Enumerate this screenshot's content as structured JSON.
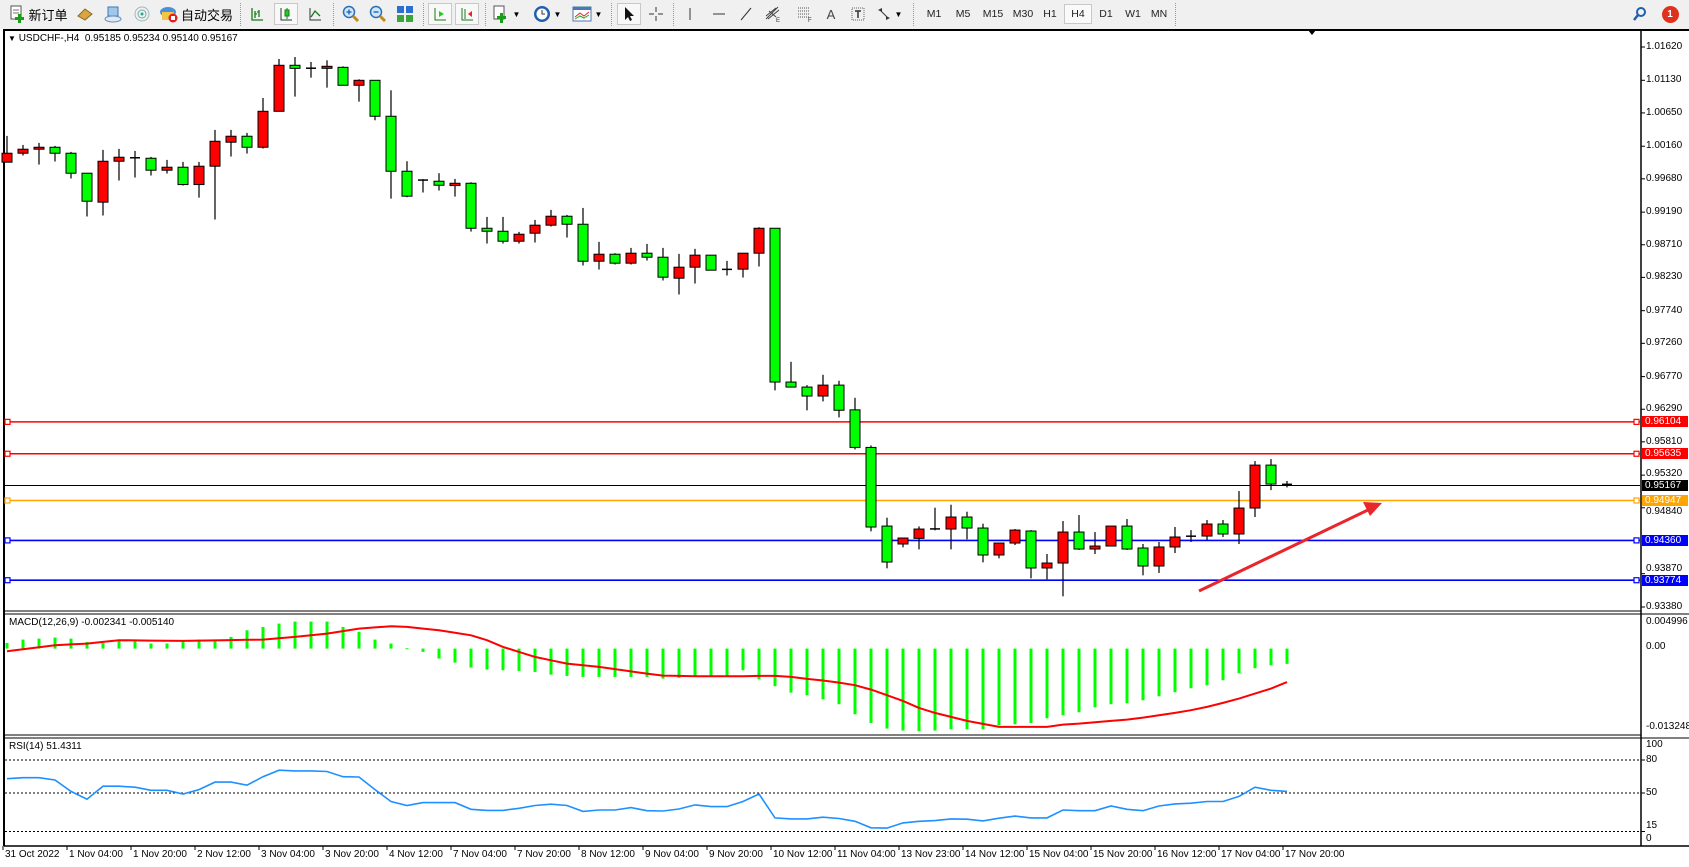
{
  "toolbar": {
    "new_order_label": "新订单",
    "auto_trading_label": "自动交易",
    "icons": [
      "new-order-icon",
      "tickets-icon",
      "cloud-icon",
      "signal-icon",
      "auto-trading-icon",
      "bar-chart-icon",
      "candlestick-icon",
      "line-chart-icon",
      "zoom-in-icon",
      "zoom-out-icon",
      "tile-windows-icon",
      "autoscroll-icon",
      "chart-shift-icon",
      "indicators-icon",
      "periods-icon",
      "templates-icon",
      "cursor-icon",
      "crosshair-icon",
      "vertical-line-icon",
      "horizontal-line-icon",
      "trendline-icon",
      "fibo-fan-icon",
      "fibo-retracement-icon",
      "text-icon",
      "text-label-icon",
      "arrows-icon",
      "search-icon",
      "notification-icon"
    ],
    "timeframes": [
      "M1",
      "M5",
      "M15",
      "M30",
      "H1",
      "H4",
      "D1",
      "W1",
      "MN"
    ],
    "active_timeframe": "H4",
    "notification_count": "1"
  },
  "chart": {
    "header": "USDCHF-,H4  0.95185 0.95234 0.95140 0.95167",
    "symbol": "USDCHF-",
    "timeframe": "H4",
    "ohlc": {
      "open": "0.95185",
      "high": "0.95234",
      "low": "0.95140",
      "close": "0.95167"
    },
    "colors": {
      "bull": "#ff0000",
      "bear": "#00ff00",
      "outline": "#000000",
      "macd_histogram": "#00ff00",
      "macd_signal": "#ff0000",
      "rsi": "#1e90ff"
    },
    "price_axis": [
      "1.01620",
      "1.01130",
      "1.00650",
      "1.00160",
      "0.99680",
      "0.99190",
      "0.98710",
      "0.98230",
      "0.97740",
      "0.97260",
      "0.96770",
      "0.96290",
      "0.95810",
      "0.95320",
      "0.94840",
      "0.93870",
      "0.93380"
    ],
    "horizontal_lines": [
      {
        "price": "0.96104",
        "color": "#ff0000"
      },
      {
        "price": "0.95635",
        "color": "#ff0000"
      },
      {
        "price": "0.94947",
        "color": "#ffa500"
      },
      {
        "price": "0.94360",
        "color": "#0000ff"
      },
      {
        "price": "0.93774",
        "color": "#0000ff"
      }
    ],
    "bid_line": {
      "price": "0.95167",
      "color": "#000000"
    },
    "trend_arrow_color": "#e8262b",
    "time_axis": [
      "31 Oct 2022",
      "1 Nov 04:00",
      "1 Nov 20:00",
      "2 Nov 12:00",
      "3 Nov 04:00",
      "3 Nov 20:00",
      "4 Nov 12:00",
      "7 Nov 04:00",
      "7 Nov 20:00",
      "8 Nov 12:00",
      "9 Nov 04:00",
      "9 Nov 20:00",
      "10 Nov 12:00",
      "11 Nov 04:00",
      "13 Nov 23:00",
      "14 Nov 12:00",
      "15 Nov 04:00",
      "15 Nov 20:00",
      "16 Nov 12:00",
      "17 Nov 04:00",
      "17 Nov 20:00"
    ]
  },
  "chart_data": {
    "type": "candlestick",
    "ohlc_order": [
      "open",
      "high",
      "low",
      "close"
    ],
    "candles": [
      [
        0.99925,
        1.00312,
        0.99925,
        1.00057
      ],
      [
        1.00057,
        1.00179,
        1.00023,
        1.00116
      ],
      [
        1.00116,
        1.00209,
        0.9989,
        1.00145
      ],
      [
        1.00145,
        1.00165,
        0.99935,
        1.00057
      ],
      [
        1.00057,
        1.00077,
        0.99685,
        0.99763
      ],
      [
        0.99763,
        0.99763,
        0.99126,
        0.99351
      ],
      [
        0.99337,
        1.00106,
        0.99141,
        0.99939
      ],
      [
        0.99939,
        1.00121,
        0.99655,
        0.99998
      ],
      [
        0.99988,
        1.00091,
        0.99699,
        0.9999
      ],
      [
        0.99983,
        1.00003,
        0.99729,
        0.99807
      ],
      [
        0.99807,
        0.99959,
        0.99758,
        0.99851
      ],
      [
        0.99851,
        0.99929,
        0.99581,
        0.99596
      ],
      [
        0.99596,
        0.99929,
        0.99404,
        0.99866
      ],
      [
        0.99866,
        1.004,
        0.99082,
        1.00233
      ],
      [
        1.00219,
        1.004,
        1.00008,
        1.00307
      ],
      [
        1.00307,
        1.00356,
        1.00052,
        1.00145
      ],
      [
        1.00145,
        1.0087,
        1.00126,
        1.00674
      ],
      [
        1.00674,
        1.01444,
        1.00674,
        1.01351
      ],
      [
        1.01351,
        1.01473,
        1.0089,
        1.01306
      ],
      [
        1.01306,
        1.014,
        1.01169,
        1.01308
      ],
      [
        1.01306,
        1.01424,
        1.01022,
        1.01336
      ],
      [
        1.01321,
        1.01336,
        1.01057,
        1.01057
      ],
      [
        1.01057,
        1.01145,
        1.00816,
        1.0113
      ],
      [
        1.0113,
        1.0113,
        1.00542,
        1.00601
      ],
      [
        1.00601,
        1.00983,
        0.99389,
        0.99792
      ],
      [
        0.99792,
        0.99939,
        0.9941,
        0.99425
      ],
      [
        0.9966,
        0.99675,
        0.99479,
        0.99662
      ],
      [
        0.99645,
        0.99763,
        0.99508,
        0.99586
      ],
      [
        0.99581,
        0.99679,
        0.99419,
        0.99615
      ],
      [
        0.99615,
        0.9963,
        0.98904,
        0.98953
      ],
      [
        0.98953,
        0.9912,
        0.98728,
        0.98909
      ],
      [
        0.98909,
        0.9912,
        0.98728,
        0.98762
      ],
      [
        0.98762,
        0.989,
        0.98728,
        0.98865
      ],
      [
        0.9888,
        0.99076,
        0.98743,
        0.98998
      ],
      [
        0.98998,
        0.99223,
        0.98978,
        0.9913
      ],
      [
        0.9913,
        0.99149,
        0.98816,
        0.99012
      ],
      [
        0.99012,
        0.99252,
        0.98405,
        0.98468
      ],
      [
        0.98468,
        0.98753,
        0.98346,
        0.98571
      ],
      [
        0.98571,
        0.98586,
        0.98419,
        0.98439
      ],
      [
        0.98439,
        0.98664,
        0.98419,
        0.98586
      ],
      [
        0.98586,
        0.98723,
        0.98478,
        0.98527
      ],
      [
        0.98527,
        0.98664,
        0.98184,
        0.98233
      ],
      [
        0.98218,
        0.98576,
        0.97978,
        0.9838
      ],
      [
        0.9838,
        0.9865,
        0.9814,
        0.98557
      ],
      [
        0.98557,
        0.98557,
        0.98336,
        0.98336
      ],
      [
        0.98346,
        0.98473,
        0.98258,
        0.98348
      ],
      [
        0.98351,
        0.98586,
        0.98228,
        0.98586
      ],
      [
        0.98586,
        0.98968,
        0.9839,
        0.98953
      ],
      [
        0.98953,
        0.98953,
        0.96567,
        0.9669
      ],
      [
        0.9669,
        0.96988,
        0.96616,
        0.96616
      ],
      [
        0.96616,
        0.96645,
        0.96273,
        0.96484
      ],
      [
        0.96484,
        0.96797,
        0.96405,
        0.96645
      ],
      [
        0.96645,
        0.96709,
        0.9617,
        0.96275
      ],
      [
        0.96281,
        0.96458,
        0.95698,
        0.95728
      ],
      [
        0.95728,
        0.95757,
        0.94493,
        0.94557
      ],
      [
        0.94571,
        0.94694,
        0.93949,
        0.94042
      ],
      [
        0.94307,
        0.94395,
        0.94258,
        0.94395
      ],
      [
        0.9439,
        0.94566,
        0.94228,
        0.94527
      ],
      [
        0.94527,
        0.94841,
        0.94508,
        0.94529
      ],
      [
        0.94527,
        0.94885,
        0.94228,
        0.94704
      ],
      [
        0.94704,
        0.94782,
        0.94375,
        0.94542
      ],
      [
        0.94542,
        0.94606,
        0.94037,
        0.94145
      ],
      [
        0.94145,
        0.94321,
        0.94096,
        0.94321
      ],
      [
        0.94321,
        0.94527,
        0.94292,
        0.94512
      ],
      [
        0.94498,
        0.94512,
        0.93802,
        0.93954
      ],
      [
        0.93954,
        0.9416,
        0.93787,
        0.94027
      ],
      [
        0.94027,
        0.94645,
        0.93537,
        0.94483
      ],
      [
        0.94483,
        0.94733,
        0.94218,
        0.94233
      ],
      [
        0.94233,
        0.94483,
        0.9416,
        0.94277
      ],
      [
        0.94277,
        0.94571,
        0.94277,
        0.94571
      ],
      [
        0.94571,
        0.94674,
        0.94218,
        0.94233
      ],
      [
        0.94248,
        0.94307,
        0.93846,
        0.93983
      ],
      [
        0.93983,
        0.94336,
        0.93881,
        0.94263
      ],
      [
        0.94263,
        0.94557,
        0.94174,
        0.9441
      ],
      [
        0.9442,
        0.94512,
        0.94336,
        0.94422
      ],
      [
        0.94424,
        0.9466,
        0.94365,
        0.94601
      ],
      [
        0.94601,
        0.9466,
        0.9441,
        0.94454
      ],
      [
        0.94454,
        0.95086,
        0.94307,
        0.94836
      ],
      [
        0.94836,
        0.95527,
        0.94704,
        0.95468
      ],
      [
        0.95468,
        0.95556,
        0.951,
        0.95189
      ],
      [
        0.95185,
        0.95234,
        0.9514,
        0.95167
      ]
    ],
    "ylim": [
      0.9338,
      1.0162
    ],
    "macd": {
      "label": "MACD(12,26,9) -0.002341 -0.005140",
      "axis": [
        "0.004996",
        "0.00",
        "-0.013248"
      ],
      "ylim": [
        -0.013248,
        0.004996
      ],
      "histogram": [
        0.00087,
        0.00138,
        0.00153,
        0.00169,
        0.00153,
        0.00102,
        0.00087,
        0.00118,
        0.00118,
        0.00077,
        0.00077,
        0.00118,
        0.00138,
        0.00138,
        0.00179,
        0.00281,
        0.00332,
        0.00383,
        0.00414,
        0.00414,
        0.00414,
        0.00332,
        0.00256,
        0.00138,
        0.00077,
        5e-05,
        -0.00051,
        -0.00153,
        -0.00215,
        -0.00291,
        -0.00322,
        -0.00332,
        -0.00342,
        -0.00358,
        -0.00399,
        -0.00419,
        -0.00434,
        -0.00434,
        -0.00434,
        -0.00434,
        -0.00434,
        -0.0046,
        -0.0045,
        -0.00419,
        -0.00419,
        -0.00419,
        -0.00332,
        -0.0047,
        -0.00577,
        -0.00675,
        -0.00715,
        -0.00777,
        -0.00853,
        -0.01007,
        -0.0114,
        -0.01226,
        -0.01257,
        -0.01267,
        -0.01257,
        -0.01237,
        -0.01237,
        -0.01237,
        -0.01175,
        -0.0116,
        -0.0114,
        -0.01068,
        -0.01022,
        -0.00976,
        -0.009,
        -0.00853,
        -0.00838,
        -0.00792,
        -0.00731,
        -0.00669,
        -0.00608,
        -0.00562,
        -0.00485,
        -0.00378,
        -0.00301,
        -0.00256,
        -0.002341
      ],
      "signal": [
        -0.00041,
        -0.0001,
        0.0002,
        0.00051,
        0.00064,
        0.00077,
        0.00102,
        0.00128,
        0.00125,
        0.00123,
        0.0012,
        0.00118,
        0.00122,
        0.00126,
        0.0013,
        0.00134,
        0.00138,
        0.00158,
        0.00179,
        0.00204,
        0.0023,
        0.00268,
        0.00307,
        0.00325,
        0.00343,
        0.00332,
        0.00306,
        0.00281,
        0.00243,
        0.00204,
        0.00128,
        0.00026,
        -0.00051,
        -0.00128,
        -0.00179,
        -0.0023,
        -0.00255,
        -0.00281,
        -0.00315,
        -0.00349,
        -0.00383,
        -0.00414,
        -0.00419,
        -0.00424,
        -0.00424,
        -0.00424,
        -0.00424,
        -0.00419,
        -0.00419,
        -0.00434,
        -0.00465,
        -0.0049,
        -0.00521,
        -0.00562,
        -0.00629,
        -0.00715,
        -0.00802,
        -0.0091,
        -0.00986,
        -0.01048,
        -0.01109,
        -0.01155,
        -0.01201,
        -0.01201,
        -0.01201,
        -0.01201,
        -0.01165,
        -0.0115,
        -0.01129,
        -0.01109,
        -0.01088,
        -0.01058,
        -0.01022,
        -0.00986,
        -0.00945,
        -0.00894,
        -0.00833,
        -0.00767,
        -0.0069,
        -0.00613,
        -0.00514
      ]
    },
    "rsi": {
      "label": "RSI(14) 51.4311",
      "axis": [
        "100",
        "80",
        "50",
        "15",
        "0"
      ],
      "levels": [
        80,
        50,
        15
      ],
      "ylim": [
        0,
        100
      ],
      "values": [
        63.0,
        63.9,
        63.9,
        61.8,
        51.5,
        44.4,
        56.2,
        56.2,
        55.3,
        52.5,
        52.5,
        49.1,
        53.1,
        59.9,
        59.9,
        57.1,
        64.8,
        70.7,
        70.1,
        70.1,
        69.5,
        64.8,
        64.5,
        53.1,
        42.3,
        38.6,
        41.3,
        41.3,
        41.3,
        35.2,
        34.2,
        34.2,
        36.1,
        38.6,
        39.8,
        38.6,
        33.3,
        34.5,
        34.5,
        36.7,
        33.9,
        33.6,
        35.5,
        39.2,
        37.6,
        37.6,
        42.3,
        49.1,
        27.4,
        26.5,
        26.5,
        28.0,
        26.8,
        24.3,
        18.4,
        18.1,
        22.8,
        24.3,
        24.9,
        26.5,
        26.2,
        24.6,
        27.1,
        29.0,
        27.4,
        27.4,
        34.5,
        33.9,
        33.9,
        38.2,
        35.2,
        33.9,
        38.2,
        40.1,
        40.7,
        42.3,
        42.3,
        46.9,
        55.3,
        52.5,
        51.43
      ]
    }
  }
}
